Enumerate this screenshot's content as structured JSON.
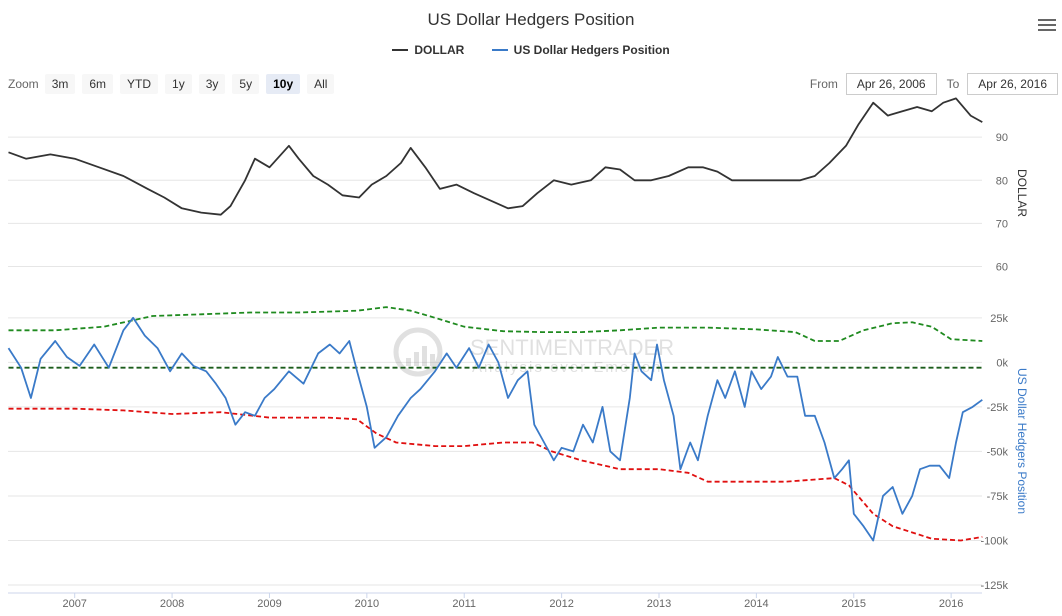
{
  "chart_data": {
    "type": "line",
    "title": "US Dollar Hedgers Position",
    "legend": [
      {
        "name": "DOLLAR",
        "color": "#333333"
      },
      {
        "name": "US Dollar Hedgers Position",
        "color": "#3a7ac8"
      }
    ],
    "zoom": {
      "label": "Zoom",
      "buttons": [
        "3m",
        "6m",
        "YTD",
        "1y",
        "3y",
        "5y",
        "10y",
        "All"
      ],
      "selected": "10y"
    },
    "range": {
      "from_label": "From",
      "from": "Apr 26, 2006",
      "to_label": "To",
      "to": "Apr 26, 2016"
    },
    "watermark": {
      "brand": "SENTIMENTRADER",
      "tagline": "Analysis over Emotion"
    },
    "x_axis": {
      "ticks": [
        "2007",
        "2008",
        "2009",
        "2010",
        "2011",
        "2012",
        "2013",
        "2014",
        "2015",
        "2016"
      ],
      "range": [
        "2006-04-26",
        "2016-04-26"
      ]
    },
    "top_panel": {
      "ylabel": "DOLLAR",
      "ylim": [
        55,
        97
      ],
      "ticks": [
        "60",
        "70",
        "80",
        "90"
      ],
      "series": [
        {
          "name": "DOLLAR",
          "color": "#333333",
          "points": [
            [
              2006.32,
              86.5
            ],
            [
              2006.5,
              85
            ],
            [
              2006.75,
              86
            ],
            [
              2007.0,
              85
            ],
            [
              2007.25,
              83
            ],
            [
              2007.5,
              81
            ],
            [
              2007.75,
              78
            ],
            [
              2007.92,
              76
            ],
            [
              2008.1,
              73.5
            ],
            [
              2008.3,
              72.5
            ],
            [
              2008.5,
              72
            ],
            [
              2008.6,
              74
            ],
            [
              2008.75,
              80
            ],
            [
              2008.85,
              85
            ],
            [
              2009.0,
              83
            ],
            [
              2009.2,
              88
            ],
            [
              2009.3,
              85
            ],
            [
              2009.45,
              81
            ],
            [
              2009.6,
              79
            ],
            [
              2009.75,
              76.5
            ],
            [
              2009.92,
              76
            ],
            [
              2010.05,
              79
            ],
            [
              2010.2,
              81
            ],
            [
              2010.35,
              84
            ],
            [
              2010.45,
              87.5
            ],
            [
              2010.6,
              83
            ],
            [
              2010.75,
              78
            ],
            [
              2010.92,
              79
            ],
            [
              2011.1,
              77
            ],
            [
              2011.3,
              75
            ],
            [
              2011.45,
              73.5
            ],
            [
              2011.6,
              74
            ],
            [
              2011.75,
              77
            ],
            [
              2011.92,
              80
            ],
            [
              2012.1,
              79
            ],
            [
              2012.3,
              80
            ],
            [
              2012.45,
              83
            ],
            [
              2012.6,
              82.5
            ],
            [
              2012.75,
              80
            ],
            [
              2012.92,
              80
            ],
            [
              2013.1,
              81
            ],
            [
              2013.3,
              83
            ],
            [
              2013.45,
              83
            ],
            [
              2013.6,
              82
            ],
            [
              2013.75,
              80
            ],
            [
              2013.92,
              80
            ],
            [
              2014.1,
              80
            ],
            [
              2014.3,
              80
            ],
            [
              2014.45,
              80
            ],
            [
              2014.6,
              81
            ],
            [
              2014.75,
              84
            ],
            [
              2014.92,
              88
            ],
            [
              2015.05,
              93
            ],
            [
              2015.2,
              98
            ],
            [
              2015.35,
              95
            ],
            [
              2015.5,
              96
            ],
            [
              2015.65,
              97
            ],
            [
              2015.8,
              96
            ],
            [
              2015.92,
              98
            ],
            [
              2016.05,
              99
            ],
            [
              2016.2,
              95
            ],
            [
              2016.32,
              93.5
            ]
          ]
        }
      ]
    },
    "bottom_panel": {
      "ylabel": "US Dollar Hedgers Position",
      "ylim": [
        -125000,
        35000
      ],
      "ticks": [
        "25k",
        "0k",
        "-25k",
        "-50k",
        "-75k",
        "-100k",
        "-125k"
      ],
      "series": [
        {
          "name": "US Dollar Hedgers Position",
          "color": "#3a7ac8",
          "points": [
            [
              2006.32,
              8000
            ],
            [
              2006.45,
              -3000
            ],
            [
              2006.55,
              -20000
            ],
            [
              2006.65,
              2000
            ],
            [
              2006.8,
              12000
            ],
            [
              2006.92,
              3000
            ],
            [
              2007.05,
              -2000
            ],
            [
              2007.2,
              10000
            ],
            [
              2007.35,
              -3000
            ],
            [
              2007.5,
              18000
            ],
            [
              2007.6,
              25000
            ],
            [
              2007.72,
              15000
            ],
            [
              2007.85,
              8000
            ],
            [
              2007.98,
              -5000
            ],
            [
              2008.1,
              5000
            ],
            [
              2008.22,
              -2000
            ],
            [
              2008.35,
              -5000
            ],
            [
              2008.45,
              -12000
            ],
            [
              2008.55,
              -20000
            ],
            [
              2008.65,
              -35000
            ],
            [
              2008.75,
              -28000
            ],
            [
              2008.85,
              -30000
            ],
            [
              2008.95,
              -20000
            ],
            [
              2009.05,
              -15000
            ],
            [
              2009.2,
              -5000
            ],
            [
              2009.35,
              -12000
            ],
            [
              2009.5,
              5000
            ],
            [
              2009.62,
              10000
            ],
            [
              2009.72,
              5000
            ],
            [
              2009.82,
              12000
            ],
            [
              2009.9,
              -5000
            ],
            [
              2010.0,
              -25000
            ],
            [
              2010.08,
              -48000
            ],
            [
              2010.2,
              -42000
            ],
            [
              2010.32,
              -30000
            ],
            [
              2010.45,
              -20000
            ],
            [
              2010.55,
              -15000
            ],
            [
              2010.7,
              -5000
            ],
            [
              2010.82,
              5000
            ],
            [
              2010.92,
              -3000
            ],
            [
              2011.05,
              8000
            ],
            [
              2011.15,
              -3000
            ],
            [
              2011.25,
              10000
            ],
            [
              2011.35,
              0
            ],
            [
              2011.45,
              -20000
            ],
            [
              2011.55,
              -10000
            ],
            [
              2011.65,
              -5000
            ],
            [
              2011.72,
              -35000
            ],
            [
              2011.82,
              -45000
            ],
            [
              2011.92,
              -55000
            ],
            [
              2012.0,
              -48000
            ],
            [
              2012.12,
              -50000
            ],
            [
              2012.22,
              -35000
            ],
            [
              2012.32,
              -45000
            ],
            [
              2012.42,
              -25000
            ],
            [
              2012.5,
              -50000
            ],
            [
              2012.6,
              -55000
            ],
            [
              2012.7,
              -20000
            ],
            [
              2012.75,
              5000
            ],
            [
              2012.82,
              -5000
            ],
            [
              2012.92,
              -10000
            ],
            [
              2012.98,
              10000
            ],
            [
              2013.05,
              -10000
            ],
            [
              2013.15,
              -30000
            ],
            [
              2013.22,
              -60000
            ],
            [
              2013.32,
              -45000
            ],
            [
              2013.4,
              -55000
            ],
            [
              2013.5,
              -30000
            ],
            [
              2013.6,
              -10000
            ],
            [
              2013.68,
              -20000
            ],
            [
              2013.78,
              -5000
            ],
            [
              2013.88,
              -25000
            ],
            [
              2013.95,
              -5000
            ],
            [
              2014.05,
              -15000
            ],
            [
              2014.15,
              -8000
            ],
            [
              2014.22,
              3000
            ],
            [
              2014.32,
              -8000
            ],
            [
              2014.42,
              -8000
            ],
            [
              2014.5,
              -30000
            ],
            [
              2014.6,
              -30000
            ],
            [
              2014.7,
              -45000
            ],
            [
              2014.8,
              -65000
            ],
            [
              2014.88,
              -60000
            ],
            [
              2014.95,
              -55000
            ],
            [
              2015.0,
              -85000
            ],
            [
              2015.1,
              -92000
            ],
            [
              2015.2,
              -100000
            ],
            [
              2015.3,
              -75000
            ],
            [
              2015.4,
              -70000
            ],
            [
              2015.5,
              -85000
            ],
            [
              2015.6,
              -75000
            ],
            [
              2015.68,
              -60000
            ],
            [
              2015.78,
              -58000
            ],
            [
              2015.88,
              -58000
            ],
            [
              2015.98,
              -65000
            ],
            [
              2016.05,
              -45000
            ],
            [
              2016.12,
              -28000
            ],
            [
              2016.22,
              -25000
            ],
            [
              2016.32,
              -21000
            ]
          ]
        },
        {
          "name": "upper band",
          "color": "#1f8a1f",
          "points": [
            [
              2006.32,
              18000
            ],
            [
              2006.8,
              18000
            ],
            [
              2007.3,
              20000
            ],
            [
              2007.8,
              26000
            ],
            [
              2008.3,
              27000
            ],
            [
              2008.8,
              28000
            ],
            [
              2009.3,
              28000
            ],
            [
              2009.9,
              29000
            ],
            [
              2010.2,
              31000
            ],
            [
              2010.45,
              29000
            ],
            [
              2010.7,
              25000
            ],
            [
              2011.0,
              20000
            ],
            [
              2011.4,
              17500
            ],
            [
              2011.8,
              17000
            ],
            [
              2012.2,
              17000
            ],
            [
              2012.6,
              18000
            ],
            [
              2013.0,
              19500
            ],
            [
              2013.5,
              19500
            ],
            [
              2014.0,
              18500
            ],
            [
              2014.4,
              17000
            ],
            [
              2014.6,
              12000
            ],
            [
              2014.85,
              12000
            ],
            [
              2015.1,
              18000
            ],
            [
              2015.4,
              22000
            ],
            [
              2015.6,
              22500
            ],
            [
              2015.8,
              20000
            ],
            [
              2016.0,
              13000
            ],
            [
              2016.32,
              12000
            ]
          ]
        },
        {
          "name": "lower band",
          "color": "#e01010",
          "points": [
            [
              2006.32,
              -26000
            ],
            [
              2007.0,
              -26000
            ],
            [
              2007.5,
              -27000
            ],
            [
              2008.0,
              -29000
            ],
            [
              2008.5,
              -28000
            ],
            [
              2009.0,
              -31000
            ],
            [
              2009.6,
              -31000
            ],
            [
              2009.9,
              -32000
            ],
            [
              2010.1,
              -40000
            ],
            [
              2010.3,
              -45000
            ],
            [
              2010.7,
              -47000
            ],
            [
              2011.0,
              -47000
            ],
            [
              2011.4,
              -45000
            ],
            [
              2011.7,
              -45000
            ],
            [
              2011.9,
              -50000
            ],
            [
              2012.2,
              -55000
            ],
            [
              2012.6,
              -60000
            ],
            [
              2013.0,
              -60000
            ],
            [
              2013.3,
              -62000
            ],
            [
              2013.5,
              -67000
            ],
            [
              2013.9,
              -67000
            ],
            [
              2014.3,
              -67000
            ],
            [
              2014.8,
              -65000
            ],
            [
              2014.95,
              -69000
            ],
            [
              2015.2,
              -85000
            ],
            [
              2015.4,
              -92000
            ],
            [
              2015.8,
              -99000
            ],
            [
              2016.1,
              -100000
            ],
            [
              2016.32,
              -98000
            ]
          ]
        },
        {
          "name": "zero line",
          "color": "#1a5c1a",
          "points": [
            [
              2006.32,
              -3000
            ],
            [
              2016.32,
              -3000
            ]
          ]
        }
      ]
    }
  }
}
